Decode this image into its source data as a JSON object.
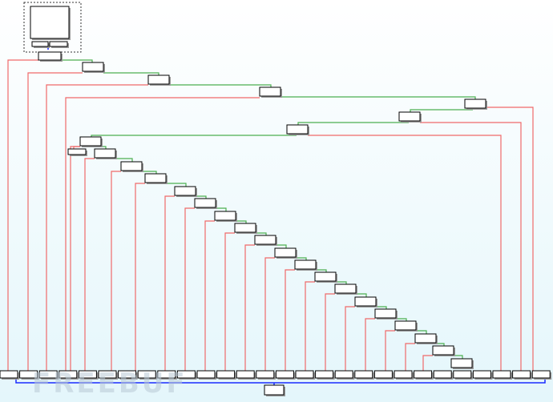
{
  "watermark": "FREEBUF"
}
